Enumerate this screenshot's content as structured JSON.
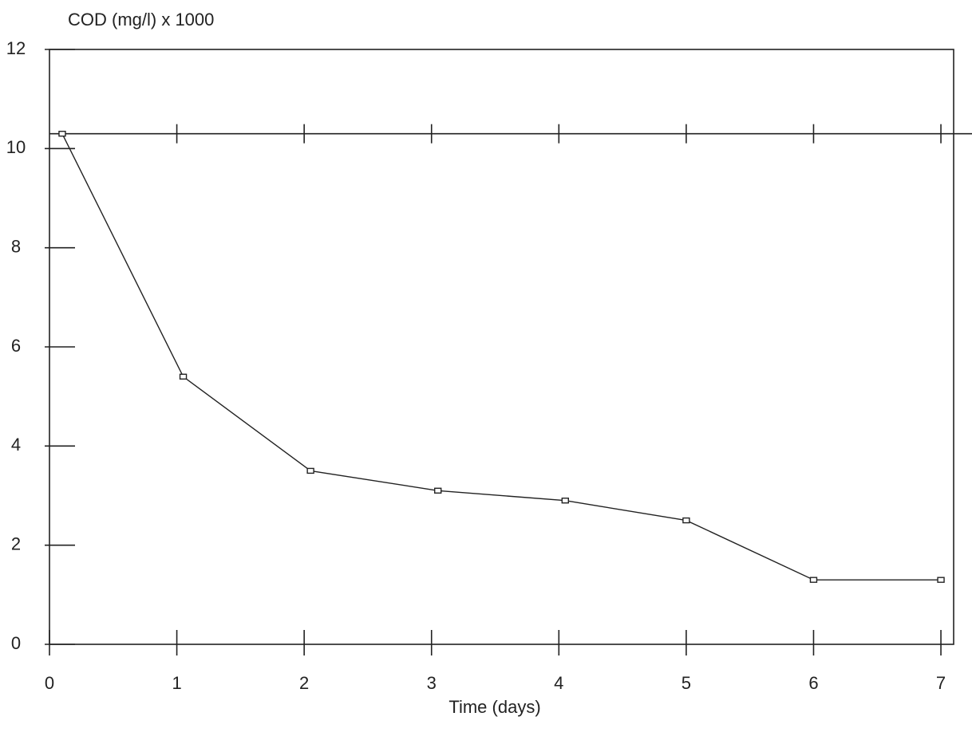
{
  "chart_data": {
    "type": "line",
    "y_axis_label": "COD (mg/l) x 1000",
    "x_axis_label": "Time (days)",
    "x": [
      0.1,
      1.05,
      2.05,
      3.05,
      4.05,
      5,
      6,
      7
    ],
    "series": [
      {
        "color": "#222222",
        "values": [
          10.3,
          5.4,
          3.5,
          3.1,
          2.9,
          2.5,
          1.3,
          1.3
        ]
      }
    ],
    "reference_line": 10.3,
    "xlim": [
      0,
      7.1
    ],
    "ylim": [
      0,
      12
    ],
    "xticks": [
      0,
      1,
      2,
      3,
      4,
      5,
      6,
      7
    ],
    "yticks": [
      0,
      2,
      4,
      6,
      8,
      10,
      12
    ]
  }
}
